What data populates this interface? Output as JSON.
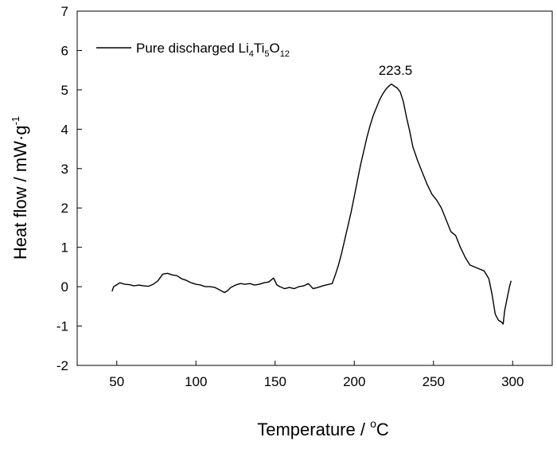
{
  "chart_data": {
    "type": "line",
    "title": "",
    "xlabel": "Temperature / °C",
    "xlabel_parts": {
      "main": "Temperature / ",
      "sup": "o",
      "unit": "C"
    },
    "ylabel": "Heat flow / mW.g-1",
    "ylabel_parts": {
      "main": "Heat flow / mW",
      "dot": "·",
      "unit": "g",
      "sup": "-1"
    },
    "xlim": [
      25,
      325
    ],
    "ylim": [
      -2,
      7
    ],
    "xticks": [
      50,
      100,
      150,
      200,
      250,
      300
    ],
    "yticks": [
      -2,
      -1,
      0,
      1,
      2,
      3,
      4,
      5,
      6,
      7
    ],
    "grid": false,
    "legend": {
      "position": "top-left",
      "entries": [
        {
          "name": "Pure discharged Li4Ti5O12",
          "parts": [
            {
              "text": "Pure discharged Li"
            },
            {
              "sub": "4"
            },
            {
              "text": "Ti"
            },
            {
              "sub": "5"
            },
            {
              "text": "O"
            },
            {
              "sub": "12"
            }
          ]
        }
      ]
    },
    "annotations": [
      {
        "text": "223.5",
        "x": 223.5,
        "y": 5.15
      }
    ],
    "series": [
      {
        "name": "Pure discharged Li4Ti5O12",
        "color": "#000000",
        "points": [
          [
            47,
            -0.12
          ],
          [
            48,
            0.0
          ],
          [
            50,
            0.05
          ],
          [
            52,
            0.1
          ],
          [
            55,
            0.06
          ],
          [
            58,
            0.05
          ],
          [
            61,
            0.02
          ],
          [
            64,
            0.04
          ],
          [
            67,
            0.02
          ],
          [
            70,
            0.01
          ],
          [
            73,
            0.06
          ],
          [
            76,
            0.15
          ],
          [
            79,
            0.32
          ],
          [
            82,
            0.34
          ],
          [
            85,
            0.3
          ],
          [
            88,
            0.28
          ],
          [
            91,
            0.2
          ],
          [
            94,
            0.16
          ],
          [
            97,
            0.1
          ],
          [
            100,
            0.06
          ],
          [
            103,
            0.04
          ],
          [
            106,
            0.0
          ],
          [
            109,
            0.0
          ],
          [
            112,
            -0.02
          ],
          [
            115,
            -0.08
          ],
          [
            118,
            -0.15
          ],
          [
            120,
            -0.1
          ],
          [
            122,
            -0.02
          ],
          [
            125,
            0.04
          ],
          [
            128,
            0.08
          ],
          [
            131,
            0.06
          ],
          [
            134,
            0.08
          ],
          [
            137,
            0.04
          ],
          [
            140,
            0.06
          ],
          [
            143,
            0.1
          ],
          [
            146,
            0.12
          ],
          [
            149,
            0.22
          ],
          [
            151,
            0.05
          ],
          [
            153,
            0.0
          ],
          [
            156,
            -0.05
          ],
          [
            159,
            -0.02
          ],
          [
            162,
            -0.05
          ],
          [
            165,
            0.0
          ],
          [
            168,
            0.02
          ],
          [
            171,
            0.08
          ],
          [
            174,
            -0.05
          ],
          [
            177,
            -0.02
          ],
          [
            180,
            0.02
          ],
          [
            183,
            0.05
          ],
          [
            186,
            0.08
          ],
          [
            188,
            0.3
          ],
          [
            190,
            0.55
          ],
          [
            192,
            0.85
          ],
          [
            194,
            1.2
          ],
          [
            196,
            1.55
          ],
          [
            198,
            1.9
          ],
          [
            200,
            2.3
          ],
          [
            202,
            2.7
          ],
          [
            204,
            3.1
          ],
          [
            206,
            3.45
          ],
          [
            208,
            3.8
          ],
          [
            210,
            4.1
          ],
          [
            212,
            4.35
          ],
          [
            214,
            4.55
          ],
          [
            216,
            4.75
          ],
          [
            218,
            4.9
          ],
          [
            220,
            5.02
          ],
          [
            222,
            5.1
          ],
          [
            223.5,
            5.15
          ],
          [
            225,
            5.1
          ],
          [
            227,
            5.05
          ],
          [
            229,
            4.95
          ],
          [
            231,
            4.7
          ],
          [
            233,
            4.3
          ],
          [
            235,
            3.95
          ],
          [
            237,
            3.55
          ],
          [
            240,
            3.2
          ],
          [
            243,
            2.9
          ],
          [
            246,
            2.6
          ],
          [
            249,
            2.35
          ],
          [
            252,
            2.2
          ],
          [
            255,
            2.0
          ],
          [
            258,
            1.7
          ],
          [
            261,
            1.4
          ],
          [
            264,
            1.3
          ],
          [
            267,
            1.0
          ],
          [
            270,
            0.75
          ],
          [
            273,
            0.55
          ],
          [
            276,
            0.5
          ],
          [
            279,
            0.45
          ],
          [
            282,
            0.4
          ],
          [
            285,
            0.2
          ],
          [
            287,
            -0.2
          ],
          [
            289,
            -0.7
          ],
          [
            291,
            -0.85
          ],
          [
            293,
            -0.9
          ],
          [
            294,
            -0.95
          ],
          [
            295,
            -0.6
          ],
          [
            296,
            -0.4
          ],
          [
            297,
            -0.2
          ],
          [
            298,
            0.0
          ],
          [
            299,
            0.15
          ]
        ]
      }
    ]
  }
}
